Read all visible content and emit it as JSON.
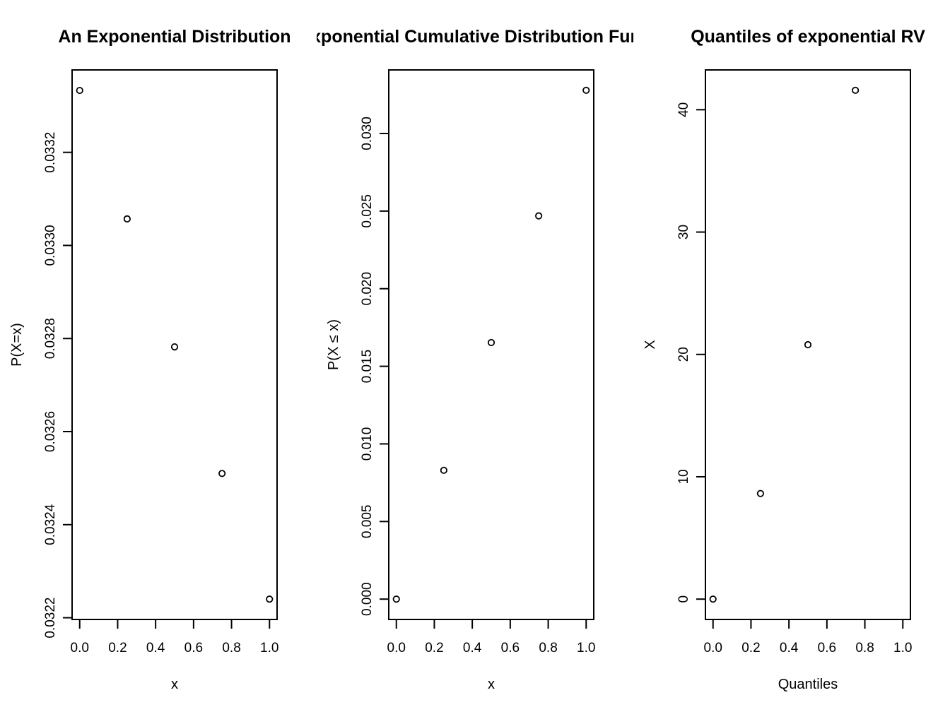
{
  "figure": {
    "colors": {
      "foreground": "#000000",
      "background": "#ffffff"
    }
  },
  "chart_data": [
    {
      "type": "scatter",
      "title": "An Exponential Distribution",
      "xlabel": "x",
      "ylabel": "P(X=x)",
      "x": [
        0,
        0.25,
        0.5,
        0.75,
        1.0
      ],
      "y": [
        0.033333,
        0.033057,
        0.032782,
        0.03251,
        0.03224
      ],
      "xtick_values": [
        0.0,
        0.2,
        0.4,
        0.6,
        0.8,
        1.0
      ],
      "xtick_labels": [
        "0.0",
        "0.2",
        "0.4",
        "0.6",
        "0.8",
        "1.0"
      ],
      "ytick_values": [
        0.0322,
        0.0324,
        0.0326,
        0.0328,
        0.033,
        0.0332
      ],
      "ytick_labels": [
        "0.0322",
        "0.0324",
        "0.0326",
        "0.0328",
        "0.0330",
        "0.0332"
      ],
      "xlim": [
        -0.04,
        1.04
      ],
      "ylim": [
        0.0321963,
        0.0333771
      ],
      "grid": false,
      "legend": null,
      "point_style": "open-circle"
    },
    {
      "type": "scatter",
      "title": "Exponential Cumulative Distribution Function",
      "title_visible": "xponential Cumulative Distribution Fu",
      "xlabel": "x",
      "ylabel": "P(X ≤ x)",
      "x": [
        0,
        0.25,
        0.5,
        0.75,
        1.0
      ],
      "y": [
        0.0,
        0.008299,
        0.016529,
        0.02469,
        0.032784
      ],
      "xtick_values": [
        0.0,
        0.2,
        0.4,
        0.6,
        0.8,
        1.0
      ],
      "xtick_labels": [
        "0.0",
        "0.2",
        "0.4",
        "0.6",
        "0.8",
        "1.0"
      ],
      "ytick_values": [
        0.0,
        0.005,
        0.01,
        0.015,
        0.02,
        0.025,
        0.03
      ],
      "ytick_labels": [
        "0.000",
        "0.005",
        "0.010",
        "0.015",
        "0.020",
        "0.025",
        "0.030"
      ],
      "xlim": [
        -0.04,
        1.04
      ],
      "ylim": [
        -0.0013114,
        0.0340951
      ],
      "grid": false,
      "legend": null,
      "point_style": "open-circle"
    },
    {
      "type": "scatter",
      "title": "Quantiles of exponential RV",
      "xlabel": "Quantiles",
      "ylabel": "X",
      "x": [
        0,
        0.25,
        0.5,
        0.75
      ],
      "y": [
        0,
        8.6305,
        20.7944,
        41.5888
      ],
      "xtick_values": [
        0.0,
        0.2,
        0.4,
        0.6,
        0.8,
        1.0
      ],
      "xtick_labels": [
        "0.0",
        "0.2",
        "0.4",
        "0.6",
        "0.8",
        "1.0"
      ],
      "ytick_values": [
        0,
        10,
        20,
        30,
        40
      ],
      "ytick_labels": [
        "0",
        "10",
        "20",
        "30",
        "40"
      ],
      "xlim": [
        -0.04,
        1.04
      ],
      "ylim": [
        -1.6636,
        43.2524
      ],
      "grid": false,
      "legend": null,
      "point_style": "open-circle"
    }
  ]
}
